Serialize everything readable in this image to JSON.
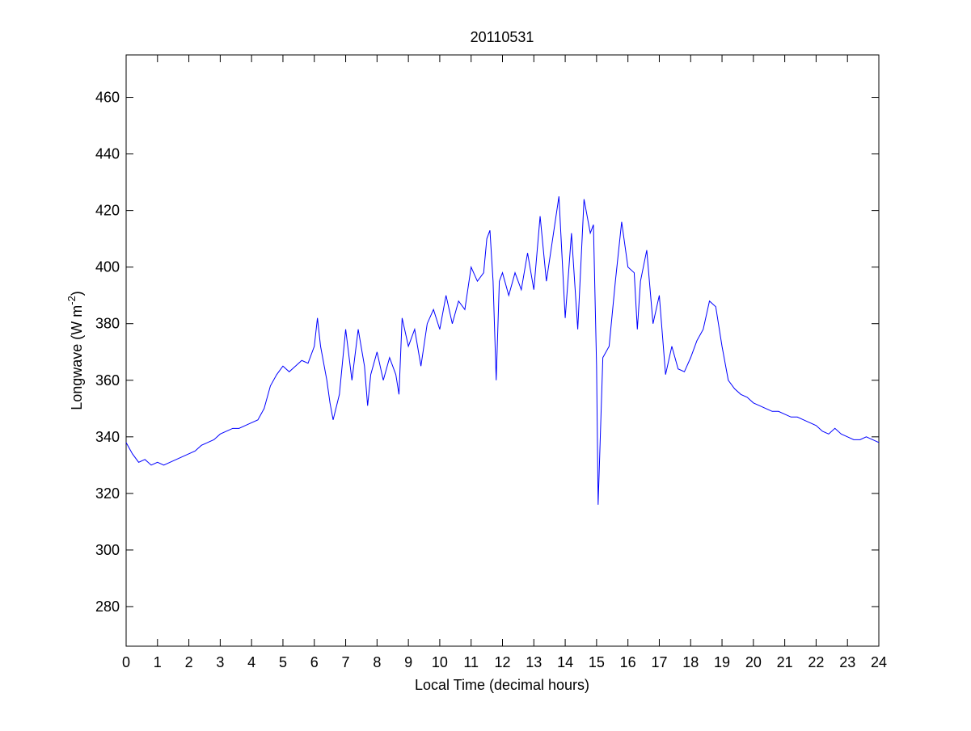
{
  "chart_data": {
    "type": "line",
    "title": "20110531",
    "xlabel": "Local Time (decimal hours)",
    "ylabel": {
      "text": "Longwave (W m",
      "superscript": "-2",
      "suffix": ")"
    },
    "x": [
      0,
      0.2,
      0.4,
      0.6,
      0.8,
      1.0,
      1.2,
      1.4,
      1.6,
      1.8,
      2.0,
      2.2,
      2.4,
      2.6,
      2.8,
      3.0,
      3.2,
      3.4,
      3.6,
      3.8,
      4.0,
      4.2,
      4.4,
      4.6,
      4.8,
      5.0,
      5.2,
      5.4,
      5.6,
      5.8,
      6.0,
      6.1,
      6.2,
      6.4,
      6.5,
      6.6,
      6.8,
      7.0,
      7.2,
      7.4,
      7.6,
      7.7,
      7.8,
      8.0,
      8.2,
      8.4,
      8.6,
      8.7,
      8.8,
      9.0,
      9.2,
      9.4,
      9.6,
      9.8,
      10.0,
      10.2,
      10.4,
      10.6,
      10.8,
      11.0,
      11.2,
      11.4,
      11.5,
      11.6,
      11.7,
      11.8,
      11.9,
      12.0,
      12.2,
      12.4,
      12.6,
      12.8,
      13.0,
      13.2,
      13.4,
      13.6,
      13.8,
      14.0,
      14.2,
      14.4,
      14.6,
      14.8,
      14.9,
      15.0,
      15.05,
      15.2,
      15.4,
      15.6,
      15.8,
      16.0,
      16.2,
      16.3,
      16.4,
      16.6,
      16.8,
      17.0,
      17.2,
      17.4,
      17.6,
      17.8,
      18.0,
      18.2,
      18.4,
      18.6,
      18.8,
      19.0,
      19.2,
      19.4,
      19.6,
      19.8,
      20.0,
      20.2,
      20.4,
      20.6,
      20.8,
      21.0,
      21.2,
      21.4,
      21.6,
      21.8,
      22.0,
      22.2,
      22.4,
      22.6,
      22.8,
      23.0,
      23.2,
      23.4,
      23.6,
      23.8,
      24.0
    ],
    "series": [
      {
        "name": "Longwave",
        "color": "#0000ff",
        "values": [
          338,
          334,
          331,
          332,
          330,
          331,
          330,
          331,
          332,
          333,
          334,
          335,
          337,
          338,
          339,
          341,
          342,
          343,
          343,
          344,
          345,
          346,
          350,
          358,
          362,
          365,
          363,
          365,
          367,
          366,
          372,
          382,
          372,
          360,
          352,
          346,
          355,
          378,
          360,
          378,
          365,
          351,
          362,
          370,
          360,
          368,
          362,
          355,
          382,
          372,
          378,
          365,
          380,
          385,
          378,
          390,
          380,
          388,
          385,
          400,
          395,
          398,
          410,
          413,
          395,
          360,
          395,
          398,
          390,
          398,
          392,
          405,
          392,
          418,
          395,
          410,
          425,
          382,
          412,
          378,
          424,
          412,
          415,
          365,
          316,
          368,
          372,
          395,
          416,
          400,
          398,
          378,
          395,
          406,
          380,
          390,
          362,
          372,
          364,
          363,
          368,
          374,
          378,
          388,
          386,
          372,
          360,
          357,
          355,
          354,
          352,
          351,
          350,
          349,
          349,
          348,
          347,
          347,
          346,
          345,
          344,
          342,
          341,
          343,
          341,
          340,
          339,
          339,
          340,
          339,
          338
        ]
      }
    ],
    "xlim": [
      0,
      24
    ],
    "ylim": [
      266,
      475
    ],
    "xticks": [
      0,
      1,
      2,
      3,
      4,
      5,
      6,
      7,
      8,
      9,
      10,
      11,
      12,
      13,
      14,
      15,
      16,
      17,
      18,
      19,
      20,
      21,
      22,
      23,
      24
    ],
    "yticks": [
      280,
      300,
      320,
      340,
      360,
      380,
      400,
      420,
      440,
      460
    ]
  }
}
